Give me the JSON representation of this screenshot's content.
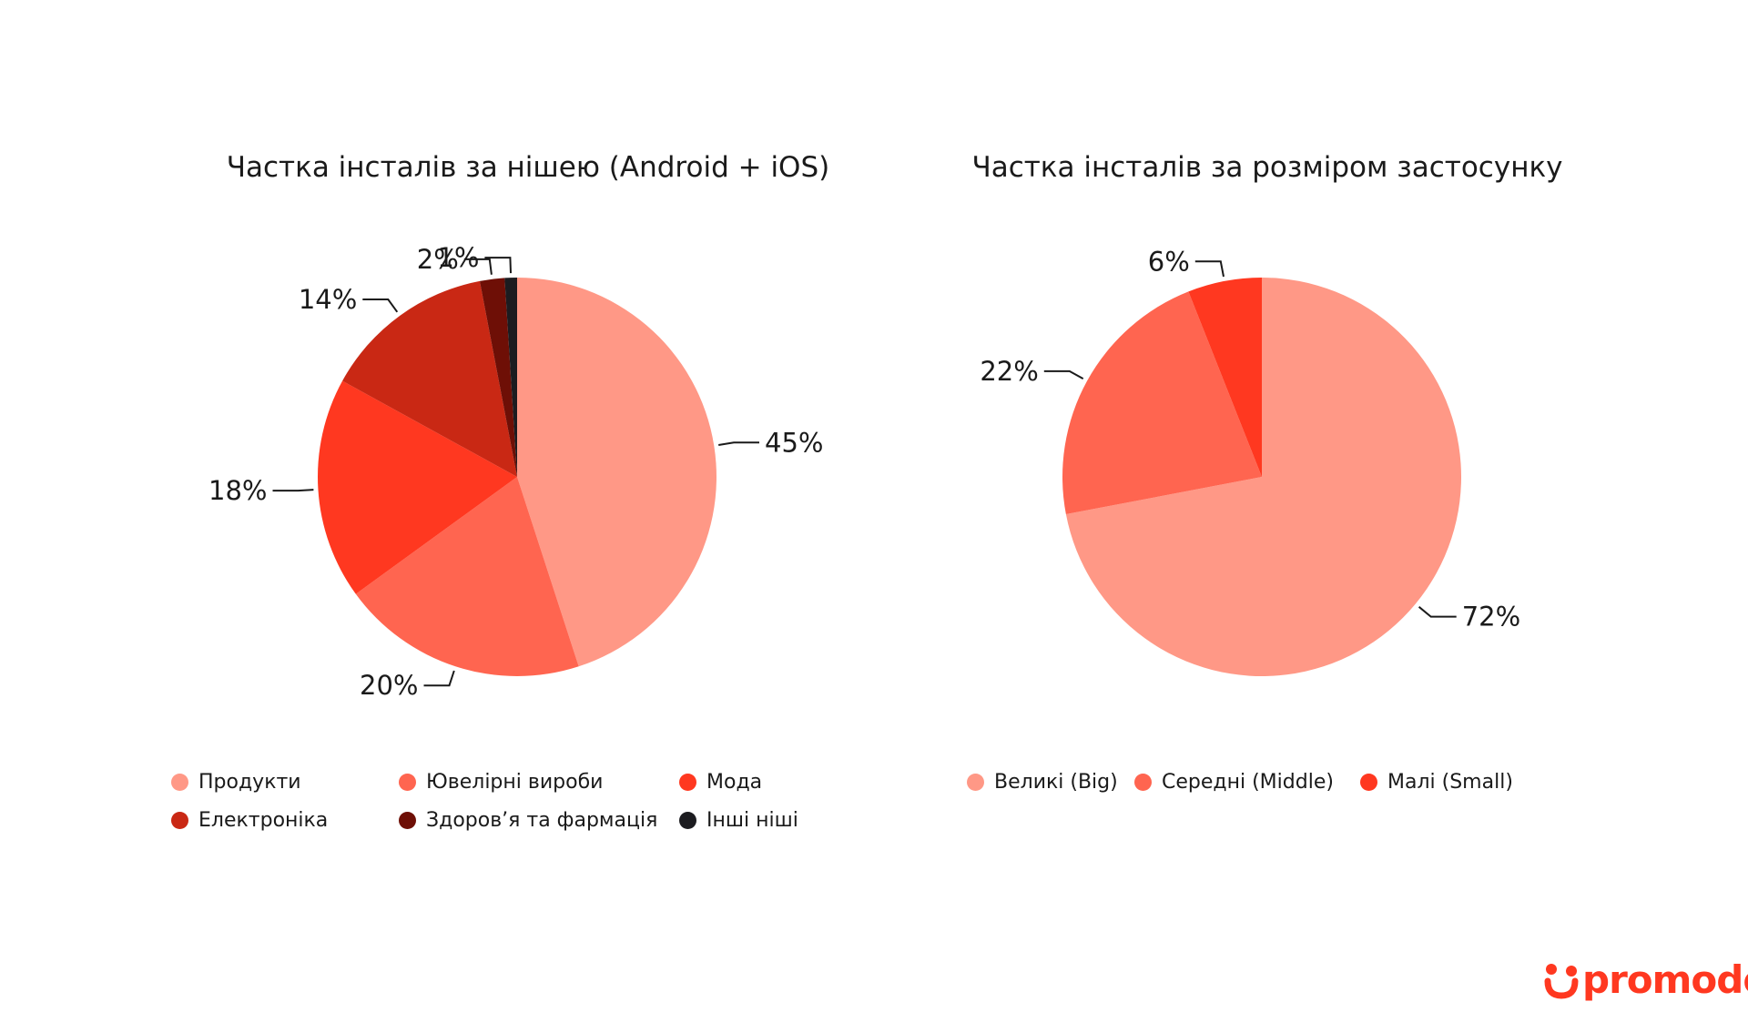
{
  "chart_data": [
    {
      "type": "pie",
      "title": "Частка інсталів за нішею (Android + iOS)",
      "categories": [
        "Продукти",
        "Ювелірні вироби",
        "Мода",
        "Електроніка",
        "Здоров’я та фармація",
        "Інші ніші"
      ],
      "values": [
        45,
        20,
        18,
        14,
        2,
        1
      ],
      "labels": [
        "45%",
        "20%",
        "18%",
        "14%",
        "2%",
        "1%"
      ],
      "colors": [
        "#FF9886",
        "#FF6550",
        "#FF3820",
        "#C92814",
        "#6E0F06",
        "#1C1C20"
      ],
      "legend_position": "bottom"
    },
    {
      "type": "pie",
      "title": "Частка інсталів за розміром застосунку",
      "categories": [
        "Великі (Big)",
        "Середні (Middle)",
        "Малі (Small)"
      ],
      "values": [
        72,
        22,
        6
      ],
      "labels": [
        "72%",
        "22%",
        "6%"
      ],
      "colors": [
        "#FF9886",
        "#FF6550",
        "#FF3820"
      ],
      "legend_position": "bottom"
    }
  ],
  "brand": {
    "name": "promodo",
    "color": "#FF3820"
  }
}
